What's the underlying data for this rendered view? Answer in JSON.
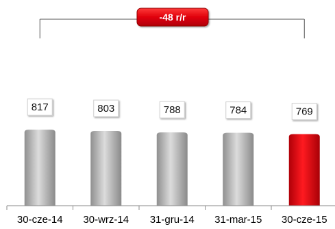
{
  "chart_data": {
    "type": "bar",
    "categories": [
      "30-cze-14",
      "30-wrz-14",
      "31-gru-14",
      "31-mar-15",
      "30-cze-15"
    ],
    "values": [
      817,
      803,
      788,
      784,
      769
    ],
    "title": "",
    "xlabel": "",
    "ylabel": "",
    "grid": false,
    "legend": "none",
    "highlight_index": 4,
    "annotation": {
      "text": "-48 r/r",
      "from_index": 0,
      "to_index": 4
    },
    "colors": {
      "bar": "#b9b9b9",
      "highlight": "#e0000a",
      "badge": "#e0000a"
    }
  }
}
